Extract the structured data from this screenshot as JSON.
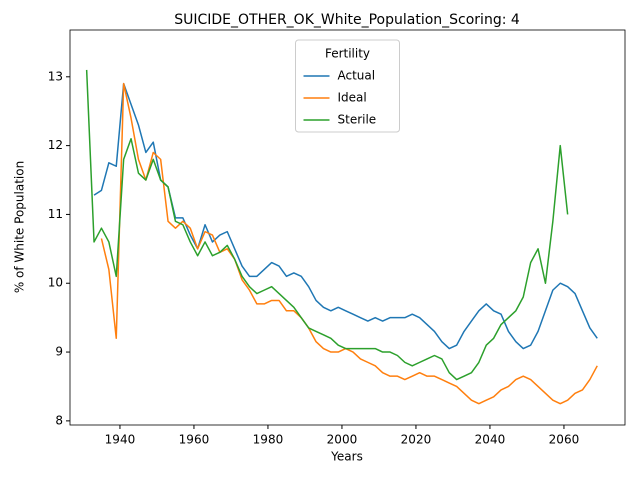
{
  "chart_data": {
    "type": "line",
    "title": "SUICIDE_OTHER_OK_White_Population_Scoring: 4",
    "x_label": "Years",
    "y_label": "% of White Population",
    "legend_title": "Fertility",
    "legend_position": "upper center",
    "xlim": [
      1926.5,
      2076.5
    ],
    "ylim": [
      7.94,
      13.68
    ],
    "xticks": [
      1940,
      1960,
      1980,
      2000,
      2020,
      2040,
      2060
    ],
    "yticks": [
      8,
      9,
      10,
      11,
      12,
      13
    ],
    "x": [
      1931,
      1933,
      1935,
      1937,
      1939,
      1941,
      1943,
      1945,
      1947,
      1949,
      1951,
      1953,
      1955,
      1957,
      1959,
      1961,
      1963,
      1965,
      1967,
      1969,
      1971,
      1973,
      1975,
      1977,
      1979,
      1981,
      1983,
      1985,
      1987,
      1989,
      1991,
      1993,
      1995,
      1997,
      1999,
      2001,
      2003,
      2005,
      2007,
      2009,
      2011,
      2013,
      2015,
      2017,
      2019,
      2021,
      2023,
      2025,
      2027,
      2029,
      2031,
      2033,
      2035,
      2037,
      2039,
      2041,
      2043,
      2045,
      2047,
      2049,
      2051,
      2053,
      2055,
      2057,
      2059,
      2061,
      2063,
      2065,
      2067,
      2069
    ],
    "series": [
      {
        "name": "Actual",
        "color": "#1f77b4",
        "values": [
          null,
          11.28,
          11.35,
          11.75,
          11.7,
          12.9,
          12.6,
          12.3,
          11.9,
          12.05,
          11.5,
          11.4,
          10.95,
          10.95,
          10.7,
          10.5,
          10.85,
          10.6,
          10.7,
          10.75,
          10.5,
          10.25,
          10.1,
          10.1,
          10.2,
          10.3,
          10.25,
          10.1,
          10.15,
          10.1,
          9.95,
          9.75,
          9.65,
          9.6,
          9.65,
          9.6,
          9.55,
          9.5,
          9.45,
          9.5,
          9.45,
          9.5,
          9.5,
          9.5,
          9.55,
          9.5,
          9.4,
          9.3,
          9.15,
          9.05,
          9.1,
          9.3,
          9.45,
          9.6,
          9.7,
          9.6,
          9.55,
          9.3,
          9.15,
          9.05,
          9.1,
          9.3,
          9.6,
          9.9,
          10.0,
          9.95,
          9.85,
          9.6,
          9.35,
          9.2
        ]
      },
      {
        "name": "Ideal",
        "color": "#ff7f0e",
        "values": [
          null,
          null,
          10.65,
          10.2,
          9.2,
          12.9,
          12.4,
          11.8,
          11.5,
          11.9,
          11.8,
          10.9,
          10.8,
          10.9,
          10.8,
          10.5,
          10.75,
          10.7,
          10.45,
          10.5,
          10.35,
          10.05,
          9.9,
          9.7,
          9.7,
          9.75,
          9.75,
          9.6,
          9.6,
          9.5,
          9.35,
          9.15,
          9.05,
          9.0,
          9.0,
          9.05,
          9.0,
          8.9,
          8.85,
          8.8,
          8.7,
          8.65,
          8.65,
          8.6,
          8.65,
          8.7,
          8.65,
          8.65,
          8.6,
          8.55,
          8.5,
          8.4,
          8.3,
          8.25,
          8.3,
          8.35,
          8.45,
          8.5,
          8.6,
          8.65,
          8.6,
          8.5,
          8.4,
          8.3,
          8.25,
          8.3,
          8.4,
          8.45,
          8.6,
          8.8
        ]
      },
      {
        "name": "Sterile",
        "color": "#2ca02c",
        "values": [
          13.1,
          10.6,
          10.8,
          10.6,
          10.1,
          11.8,
          12.1,
          11.6,
          11.5,
          11.8,
          11.5,
          11.4,
          10.9,
          10.85,
          10.6,
          10.4,
          10.6,
          10.4,
          10.45,
          10.55,
          10.35,
          10.1,
          9.95,
          9.85,
          9.9,
          9.95,
          9.85,
          9.75,
          9.65,
          9.5,
          9.35,
          9.3,
          9.25,
          9.2,
          9.1,
          9.05,
          9.05,
          9.05,
          9.05,
          9.05,
          9.0,
          9.0,
          8.95,
          8.85,
          8.8,
          8.85,
          8.9,
          8.95,
          8.9,
          8.7,
          8.6,
          8.65,
          8.7,
          8.85,
          9.1,
          9.2,
          9.4,
          9.5,
          9.6,
          9.8,
          10.3,
          10.5,
          10.0,
          10.9,
          12.0,
          11.0,
          null,
          null,
          null,
          null
        ]
      }
    ]
  }
}
